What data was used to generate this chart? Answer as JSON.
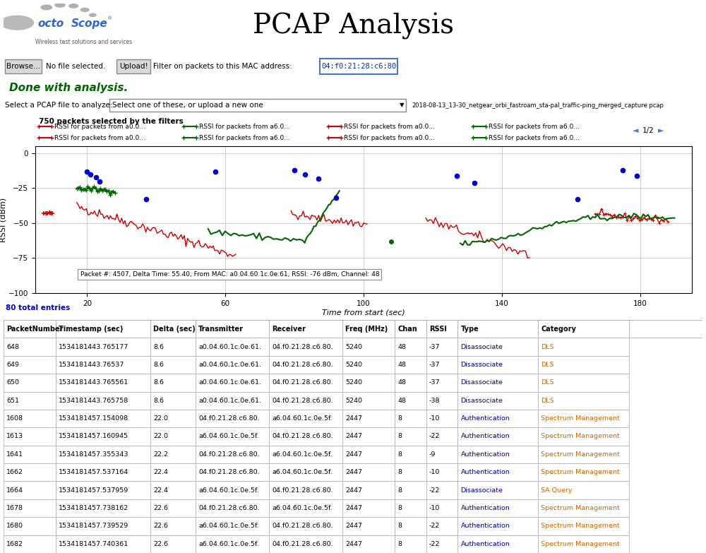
{
  "title": "PCAP Analysis",
  "logo_subtitle": "Wireless test solutions and services",
  "browse_btn": "Browse...",
  "no_file": "No file selected.",
  "upload_btn": "Upload!",
  "filter_label": "Filter on packets to this MAC address:",
  "mac_address": "04:f0:21:28:c6:80",
  "filename": "2018-08-13_13-30_netgear_orbi_fastroam_sta-pal_traffic-ping_merged_capture.pcap",
  "done_text": "Done with analysis.",
  "select_label": "Select a PCAP file to analyze:",
  "select_placeholder": "Select one of these, or upload a new one",
  "packets_selected": "750 packets selected by the filters",
  "page_indicator": "1/2",
  "ylabel": "RSSI (dBm)",
  "xlabel": "Time from start (sec)",
  "ylim": [
    -100,
    5
  ],
  "yticks": [
    0,
    -25,
    -50,
    -75,
    -100
  ],
  "xticks": [
    20,
    60,
    100,
    140,
    180
  ],
  "tooltip": "Packet #: 4507, Delta Time: 55.40, From MAC: a0.04.60.1c.0e.61, RSSI: -76 dBm, Channel: 48",
  "total_entries": "80 total entries",
  "table_headers": [
    "PacketNumber",
    "Timestamp (sec)",
    "Delta (sec)",
    "Transmitter",
    "Receiver",
    "Freq (MHz)",
    "Chan",
    "RSSI",
    "Type",
    "Category"
  ],
  "table_col_widths": [
    0.075,
    0.135,
    0.065,
    0.105,
    0.105,
    0.075,
    0.045,
    0.045,
    0.115,
    0.13
  ],
  "table_rows": [
    [
      "648",
      "1534181443.765177",
      "8.6",
      "a0.04.60.1c.0e.61.",
      "04.f0.21.28.c6.80.",
      "5240",
      "48",
      "-37",
      "Disassociate",
      "DLS"
    ],
    [
      "649",
      "1534181443.76537",
      "8.6",
      "a0.04.60.1c.0e.61.",
      "04.f0.21.28.c6.80.",
      "5240",
      "48",
      "-37",
      "Disassociate",
      "DLS"
    ],
    [
      "650",
      "1534181443.765561",
      "8.6",
      "a0.04.60.1c.0e.61.",
      "04.f0.21.28.c6.80.",
      "5240",
      "48",
      "-37",
      "Disassociate",
      "DLS"
    ],
    [
      "651",
      "1534181443.765758",
      "8.6",
      "a0.04.60.1c.0e.61.",
      "04.f0.21.28.c6.80.",
      "5240",
      "48",
      "-38",
      "Disassociate",
      "DLS"
    ],
    [
      "1608",
      "1534181457.154098",
      "22.0",
      "04.f0.21.28.c6.80.",
      "a6.04.60.1c.0e.5f.",
      "2447",
      "8",
      "-10",
      "Authentication",
      "Spectrum Management"
    ],
    [
      "1613",
      "1534181457.160945",
      "22.0",
      "a6.04.60.1c.0e.5f.",
      "04.f0.21.28.c6.80.",
      "2447",
      "8",
      "-22",
      "Authentication",
      "Spectrum Management"
    ],
    [
      "1641",
      "1534181457.355343",
      "22.2",
      "04.f0.21.28.c6.80.",
      "a6.04.60.1c.0e.5f.",
      "2447",
      "8",
      "-9",
      "Authentication",
      "Spectrum Management"
    ],
    [
      "1662",
      "1534181457.537164",
      "22.4",
      "04.f0.21.28.c6.80.",
      "a6.04.60.1c.0e.5f.",
      "2447",
      "8",
      "-10",
      "Authentication",
      "Spectrum Management"
    ],
    [
      "1664",
      "1534181457.537959",
      "22.4",
      "a6.04.60.1c.0e.5f.",
      "04.f0.21.28.c6.80.",
      "2447",
      "8",
      "-22",
      "Disassociate",
      "SA Query"
    ],
    [
      "1678",
      "1534181457.738162",
      "22.6",
      "04.f0.21.28.c6.80.",
      "a6.04.60.1c.0e.5f.",
      "2447",
      "8",
      "-10",
      "Authentication",
      "Spectrum Management"
    ],
    [
      "1680",
      "1534181457.739529",
      "22.6",
      "a6.04.60.1c.0e.5f.",
      "04.f0.21.28.c6.80.",
      "2447",
      "8",
      "-22",
      "Authentication",
      "Spectrum Management"
    ],
    [
      "1682",
      "1534181457.740361",
      "22.6",
      "a6.04.60.1c.0e.5f.",
      "04.f0.21.28.c6.80.",
      "2447",
      "8",
      "-22",
      "Authentication",
      "Spectrum Management"
    ]
  ],
  "bg_color": "#ffffff",
  "red_color": "#cc0000",
  "green_color": "#006600",
  "blue_color": "#0000cc",
  "grid_color": "#cccccc"
}
